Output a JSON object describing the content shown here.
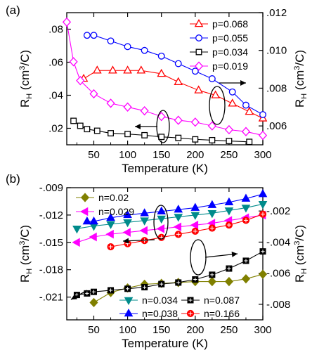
{
  "chart_data": [
    {
      "panel": "(a)",
      "type": "scatter",
      "xlabel": "Temperature (K)",
      "ylabel_left": "R_H (cm^3/C)",
      "ylabel_right": "R_H (cm^3/C)",
      "xlim": [
        10,
        300
      ],
      "ylim_left": [
        0.01,
        0.09
      ],
      "ylim_right": [
        0.005,
        0.012
      ],
      "xticks": [
        50,
        100,
        150,
        200,
        250,
        300
      ],
      "yticks_left": [
        0.02,
        0.04,
        0.06,
        0.08
      ],
      "yticks_right": [
        0.006,
        0.008,
        0.01,
        0.012
      ],
      "legend_position": "top-right",
      "series": [
        {
          "name": "p=0.068",
          "color": "#ff0000",
          "marker": "triangle-up-open",
          "axis": "left",
          "x": [
            35,
            55,
            78,
            100,
            120,
            150,
            175,
            205,
            230,
            255,
            280,
            300
          ],
          "y": [
            0.05,
            0.055,
            0.055,
            0.055,
            0.055,
            0.053,
            0.048,
            0.043,
            0.04,
            0.035,
            0.03,
            0.026
          ]
        },
        {
          "name": "p=0.055",
          "color": "#0000ff",
          "marker": "circle-open",
          "axis": "right",
          "x": [
            40,
            50,
            75,
            100,
            125,
            150,
            175,
            200,
            225,
            255,
            275,
            300
          ],
          "y": [
            0.0108,
            0.0108,
            0.0105,
            0.0102,
            0.01,
            0.0097,
            0.0093,
            0.0089,
            0.0085,
            0.0078,
            0.0071,
            0.0066
          ]
        },
        {
          "name": "p=0.034",
          "color": "#000000",
          "marker": "square-open",
          "axis": "left",
          "x": [
            20,
            30,
            40,
            55,
            75,
            100,
            125,
            150,
            175,
            200,
            225,
            250,
            280
          ],
          "y": [
            0.0245,
            0.0215,
            0.0195,
            0.0185,
            0.017,
            0.0165,
            0.0158,
            0.0148,
            0.0142,
            0.0133,
            0.0128,
            0.0123,
            0.0118
          ]
        },
        {
          "name": "p=0.019",
          "color": "#ff00ff",
          "marker": "diamond-open",
          "axis": "right",
          "x": [
            10,
            20,
            30,
            50,
            75,
            100,
            125,
            150,
            175,
            200,
            225,
            250,
            275,
            300
          ],
          "y": [
            0.0115,
            0.0094,
            0.0084,
            0.0077,
            0.0072,
            0.007,
            0.0068,
            0.0065,
            0.0063,
            0.0062,
            0.006,
            0.0058,
            0.0057,
            0.0055
          ]
        }
      ]
    },
    {
      "panel": "(b)",
      "type": "scatter",
      "xlabel": "Temperature (K)",
      "ylabel_left": "R_H (cm^3/C)",
      "ylabel_right": "R_H (cm^3/C)",
      "xlim": [
        10,
        300
      ],
      "ylim_left": [
        -0.0235,
        -0.009
      ],
      "ylim_right": [
        -0.009,
        -0.0005
      ],
      "xticks": [
        50,
        100,
        150,
        200,
        250,
        300
      ],
      "yticks_left": [
        -0.021,
        -0.018,
        -0.015,
        -0.012,
        -0.009
      ],
      "yticks_right": [
        -0.008,
        -0.006,
        -0.004,
        -0.002
      ],
      "legend_position": "top-left and bottom-right",
      "series": [
        {
          "name": "n=0.02",
          "color": "#808000",
          "marker": "diamond-filled",
          "axis": "left",
          "x": [
            50,
            75,
            100,
            125,
            150,
            175,
            200,
            225,
            250,
            275,
            300
          ],
          "y": [
            -0.0216,
            -0.0205,
            -0.02,
            -0.0196,
            -0.0195,
            -0.0194,
            -0.0193,
            -0.0193,
            -0.0193,
            -0.019,
            -0.0185
          ]
        },
        {
          "name": "n=0.029",
          "color": "#ff00ff",
          "marker": "triangle-left-filled",
          "axis": "left",
          "x": [
            25,
            50,
            75,
            100,
            125,
            150,
            175,
            200,
            225,
            250,
            275,
            300
          ],
          "y": [
            -0.015,
            -0.0144,
            -0.0141,
            -0.0139,
            -0.0137,
            -0.0135,
            -0.0133,
            -0.0131,
            -0.0129,
            -0.0126,
            -0.0123,
            -0.012
          ]
        },
        {
          "name": "n=0.034",
          "color": "#008b8b",
          "marker": "triangle-down-filled",
          "axis": "left",
          "x": [
            25,
            50,
            75,
            100,
            125,
            150,
            175,
            200,
            225,
            250,
            275,
            300
          ],
          "y": [
            -0.0135,
            -0.0132,
            -0.013,
            -0.0128,
            -0.0126,
            -0.0124,
            -0.0122,
            -0.012,
            -0.0118,
            -0.0115,
            -0.0112,
            -0.0108
          ]
        },
        {
          "name": "n=0.038",
          "color": "#0000ff",
          "marker": "triangle-up-filled",
          "axis": "left",
          "x": [
            40,
            50,
            75,
            100,
            125,
            150,
            175,
            200,
            225,
            250,
            275,
            300
          ],
          "y": [
            -0.0127,
            -0.0127,
            -0.0123,
            -0.012,
            -0.0118,
            -0.0116,
            -0.0114,
            -0.0112,
            -0.0109,
            -0.0106,
            -0.0102,
            -0.0097
          ]
        },
        {
          "name": "n=0.087",
          "color": "#000000",
          "marker": "square-crossed",
          "axis": "right",
          "x": [
            25,
            40,
            50,
            75,
            100,
            125,
            150,
            175,
            200,
            225,
            250,
            275,
            300
          ],
          "y": [
            -0.0074,
            -0.0073,
            -0.0072,
            -0.0071,
            -0.007,
            -0.0069,
            -0.0067,
            -0.0066,
            -0.0064,
            -0.0061,
            -0.0057,
            -0.0052,
            -0.0046
          ]
        },
        {
          "name": "n=0.166",
          "color": "#ff0000",
          "marker": "circle-crossed",
          "axis": "right",
          "x": [
            75,
            100,
            125,
            150,
            175,
            200,
            225,
            250,
            275,
            300
          ],
          "y": [
            -0.0043,
            -0.0041,
            -0.0039,
            -0.0037,
            -0.0035,
            -0.0033,
            -0.0031,
            -0.0029,
            -0.0026,
            -0.0022
          ]
        }
      ]
    }
  ]
}
